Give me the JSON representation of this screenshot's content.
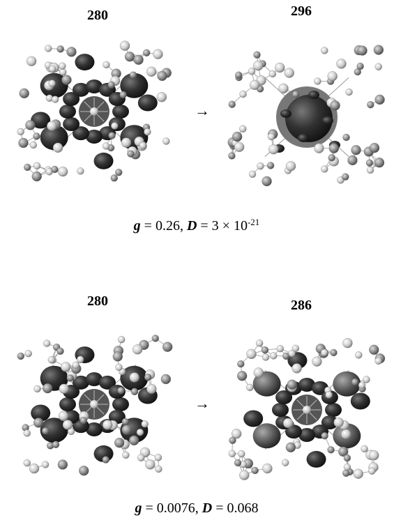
{
  "panels": [
    {
      "from_label": "280",
      "arrow": "→",
      "to_label": "296",
      "caption": [
        {
          "text": "g",
          "italic": true
        },
        {
          "text": " = 0.26, "
        },
        {
          "text": "D",
          "italic": true
        },
        {
          "text": " = 3 × 10"
        },
        {
          "text": "-21",
          "sup": true
        }
      ]
    },
    {
      "from_label": "280",
      "arrow": "→",
      "to_label": "286",
      "caption": [
        {
          "text": "g",
          "italic": true
        },
        {
          "text": " = 0.0076, "
        },
        {
          "text": "D",
          "italic": true
        },
        {
          "text": " = 0.068"
        }
      ]
    }
  ]
}
